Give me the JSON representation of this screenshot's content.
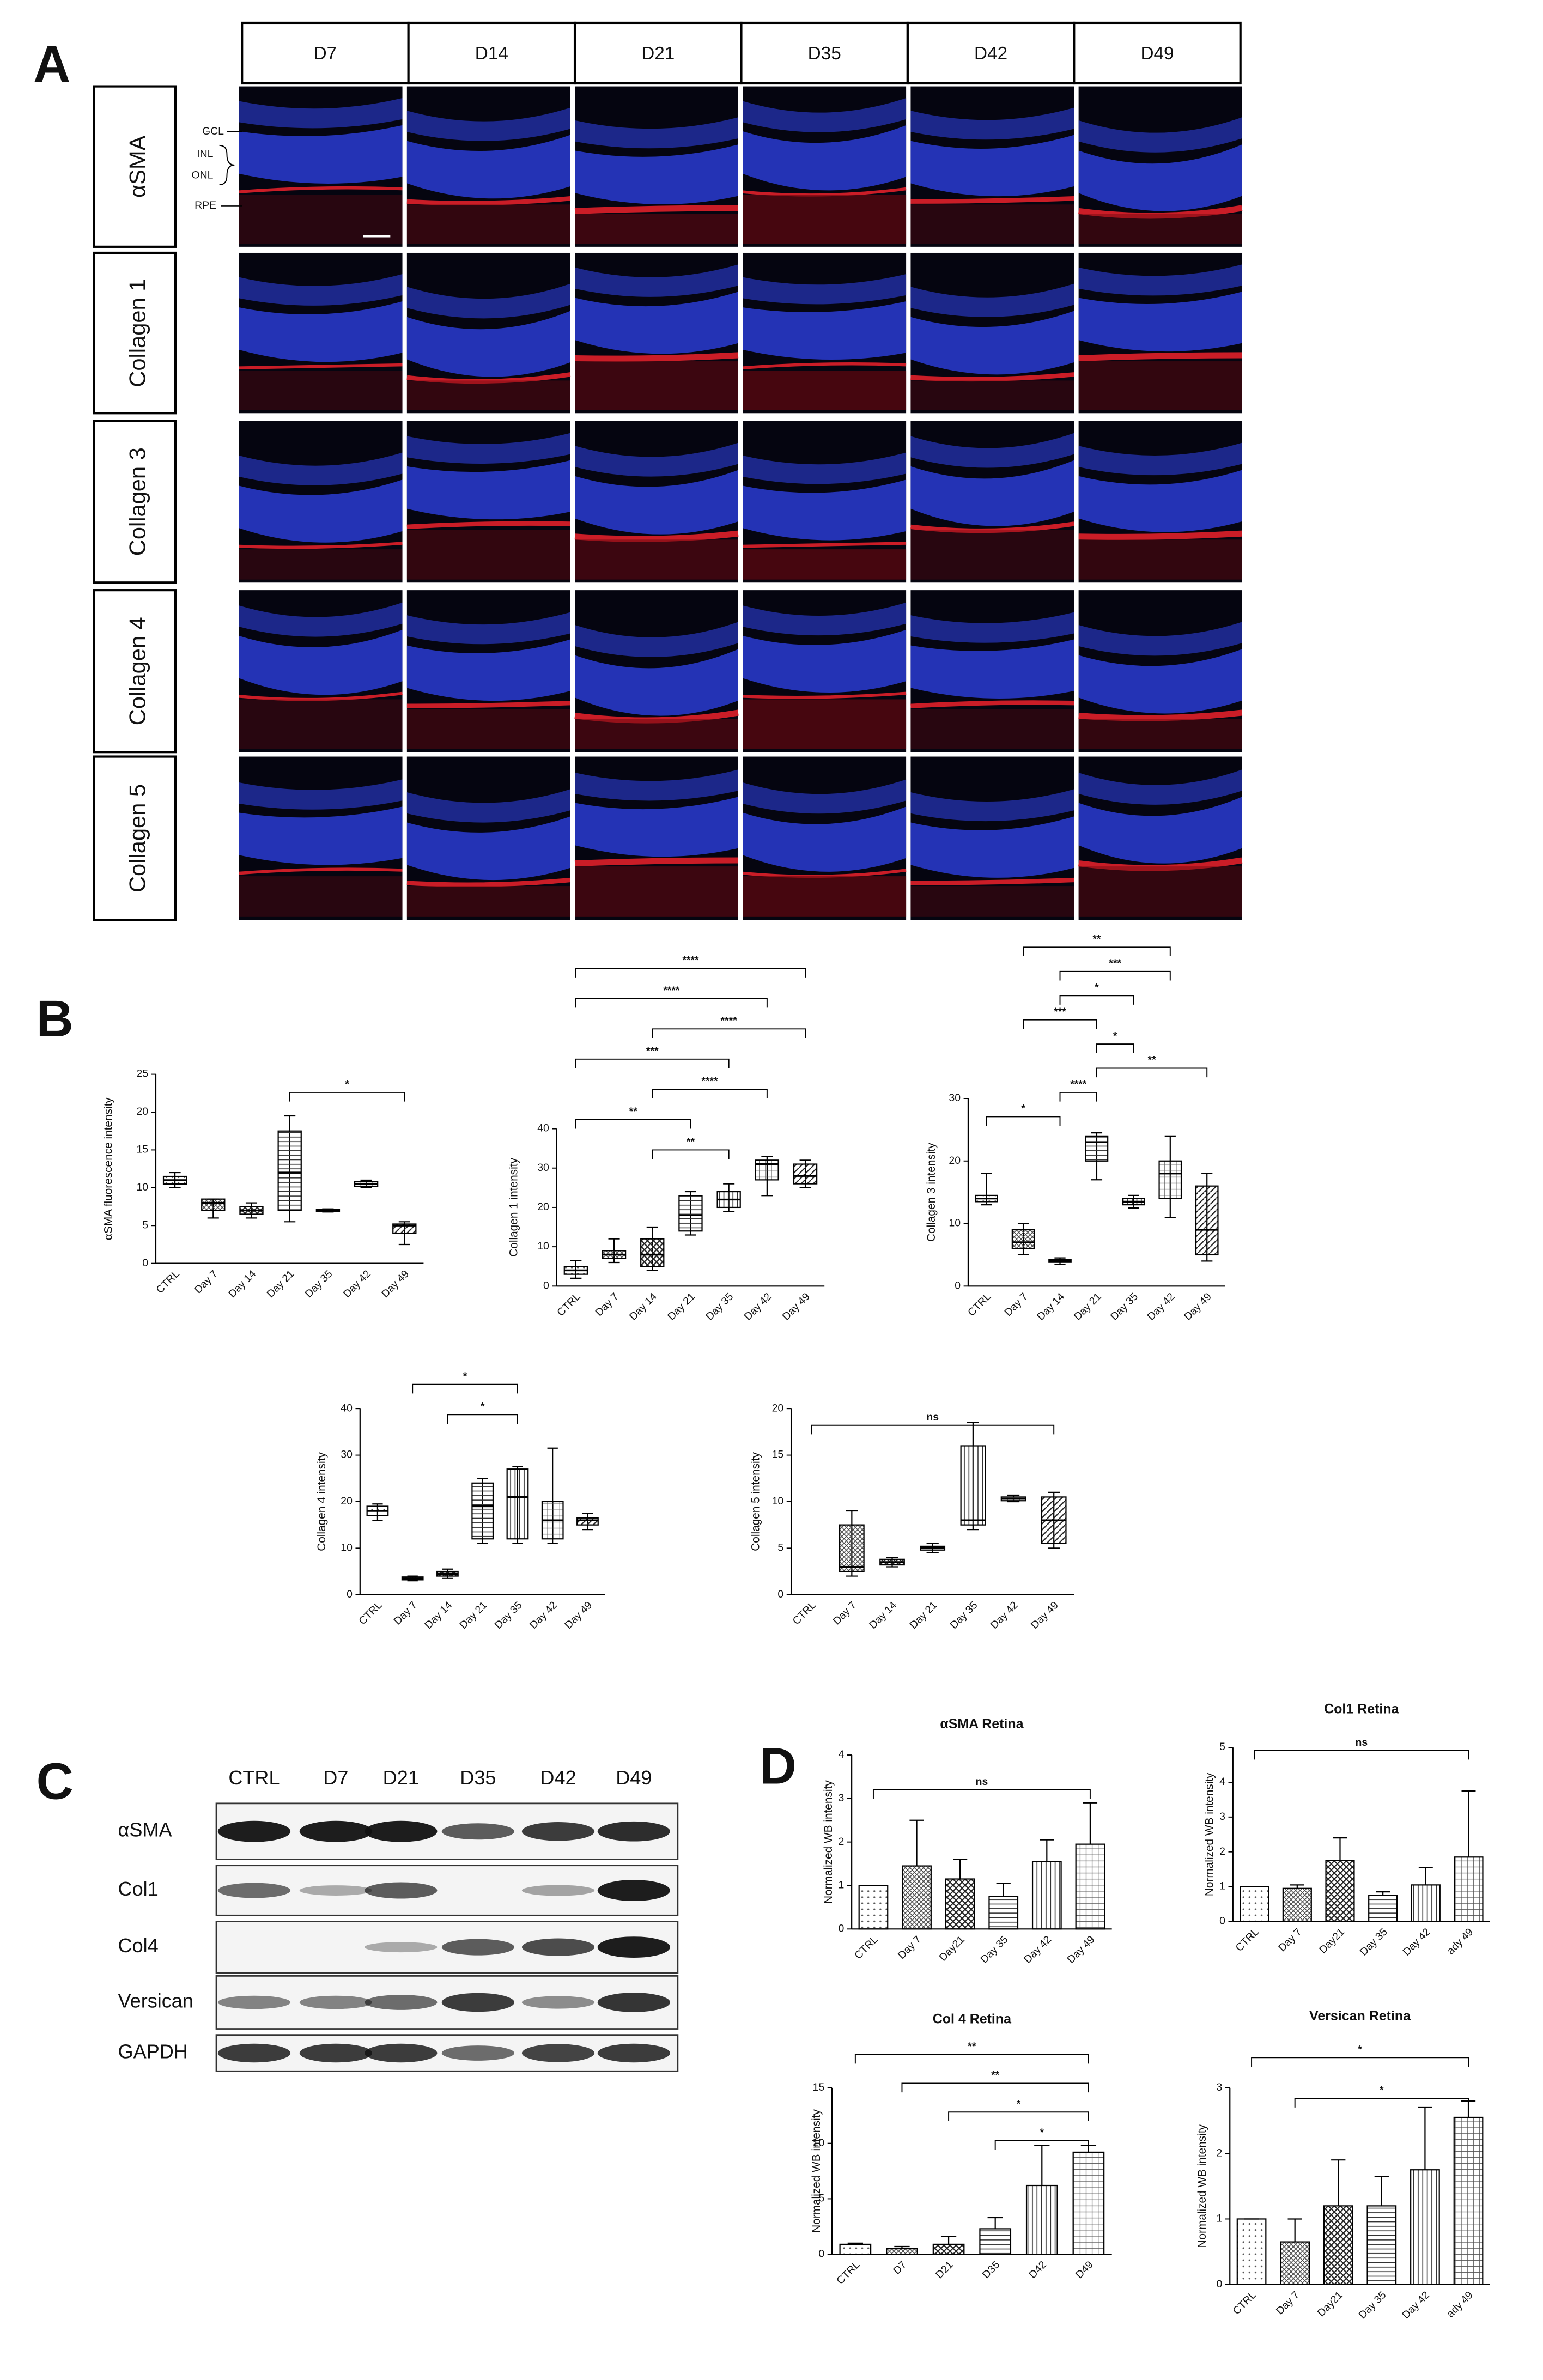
{
  "panel_labels": [
    "A",
    "B",
    "C",
    "D"
  ],
  "micrographs": {
    "columns": [
      "D7",
      "D14",
      "D21",
      "D35",
      "D42",
      "D49"
    ],
    "rows": [
      "αSMA",
      "Collagen 1",
      "Collagen 3",
      "Collagen 4",
      "Collagen 5"
    ],
    "layers": [
      "GCL",
      "INL",
      "ONL",
      "RPE"
    ]
  },
  "blot": {
    "columns": [
      "CTRL",
      "D7",
      "D21",
      "D35",
      "D42",
      "D49"
    ],
    "rows": [
      "αSMA",
      "Col1",
      "Col4",
      "Versican",
      "GAPDH"
    ]
  },
  "chart_data": [
    {
      "type": "box",
      "ylabel": "αSMA fluorescence intensity",
      "categories": [
        "CTRL",
        "Day 7",
        "Day 14",
        "Day 21",
        "Day 35",
        "Day 42",
        "Day 49"
      ],
      "boxes": [
        [
          10,
          10.5,
          11,
          11.5,
          12
        ],
        [
          6,
          7,
          8,
          8.5,
          8.5
        ],
        [
          6,
          6.5,
          7,
          7.5,
          8
        ],
        [
          5.5,
          7,
          12,
          17.5,
          19.5
        ],
        [
          6.8,
          6.9,
          7,
          7.1,
          7.2
        ],
        [
          10,
          10.2,
          10.5,
          10.8,
          11
        ],
        [
          2.5,
          4,
          5,
          5.2,
          5.5
        ]
      ],
      "ylim": [
        0,
        25
      ],
      "yticks": [
        0,
        5,
        10,
        15,
        20,
        25
      ],
      "significance": [
        {
          "between": [
            "Day 21",
            "Day 49"
          ],
          "label": "*"
        }
      ]
    },
    {
      "type": "box",
      "ylabel": "Collagen 1 intensity",
      "categories": [
        "CTRL",
        "Day 7",
        "Day 14",
        "Day 21",
        "Day 35",
        "Day 42",
        "Day 49"
      ],
      "boxes": [
        [
          2,
          3,
          4,
          5,
          6.5
        ],
        [
          6,
          7,
          8,
          9,
          12
        ],
        [
          4,
          5,
          8,
          12,
          15
        ],
        [
          13,
          14,
          18,
          23,
          24
        ],
        [
          19,
          20,
          22,
          24,
          26
        ],
        [
          23,
          27,
          31,
          32,
          33
        ],
        [
          25,
          26,
          28,
          31,
          32
        ]
      ],
      "ylim": [
        0,
        40
      ],
      "yticks": [
        0,
        10,
        20,
        30,
        40
      ],
      "significance": [
        {
          "between": [
            "Day 14",
            "Day 35"
          ],
          "label": "**"
        },
        {
          "between": [
            "CTRL",
            "Day 21"
          ],
          "label": "**"
        },
        {
          "between": [
            "Day 14",
            "Day 42"
          ],
          "label": "****"
        },
        {
          "between": [
            "CTRL",
            "Day 35"
          ],
          "label": "***"
        },
        {
          "between": [
            "Day 14",
            "Day 49"
          ],
          "label": "****"
        },
        {
          "between": [
            "CTRL",
            "Day 42"
          ],
          "label": "****"
        },
        {
          "between": [
            "CTRL",
            "Day 49"
          ],
          "label": "****"
        }
      ]
    },
    {
      "type": "box",
      "ylabel": "Collagen 3 intensity",
      "categories": [
        "CTRL",
        "Day 7",
        "Day 14",
        "Day 21",
        "Day 35",
        "Day 42",
        "Day 49"
      ],
      "boxes": [
        [
          13,
          13.5,
          14,
          14.5,
          18
        ],
        [
          5,
          6,
          7,
          9,
          10
        ],
        [
          3.5,
          3.8,
          4,
          4.2,
          4.5
        ],
        [
          17,
          20,
          23,
          24,
          24.5
        ],
        [
          12.5,
          13,
          13.5,
          14,
          14.5
        ],
        [
          11,
          14,
          18,
          20,
          24
        ],
        [
          4,
          5,
          9,
          16,
          18
        ]
      ],
      "ylim": [
        0,
        30
      ],
      "yticks": [
        0,
        10,
        20,
        30
      ],
      "significance": [
        {
          "between": [
            "CTRL",
            "Day 14"
          ],
          "label": "*"
        },
        {
          "between": [
            "Day 14",
            "Day 21"
          ],
          "label": "****"
        },
        {
          "between": [
            "Day 21",
            "Day 49"
          ],
          "label": "**"
        },
        {
          "between": [
            "Day 21",
            "Day 35"
          ],
          "label": "*"
        },
        {
          "between": [
            "Day 7",
            "Day 21"
          ],
          "label": "***"
        },
        {
          "between": [
            "Day 14",
            "Day 35"
          ],
          "label": "*"
        },
        {
          "between": [
            "Day 14",
            "Day 42"
          ],
          "label": "***"
        },
        {
          "between": [
            "Day 7",
            "Day 42"
          ],
          "label": "**"
        }
      ]
    },
    {
      "type": "box",
      "ylabel": "Collagen 4 intensity",
      "categories": [
        "CTRL",
        "Day 7",
        "Day 14",
        "Day 21",
        "Day 35",
        "Day 42",
        "Day 49"
      ],
      "boxes": [
        [
          16,
          17,
          18,
          19,
          19.5
        ],
        [
          3,
          3.2,
          3.5,
          3.8,
          4
        ],
        [
          3.5,
          4,
          4.5,
          5,
          5.5
        ],
        [
          11,
          12,
          19,
          24,
          25
        ],
        [
          11,
          12,
          21,
          27,
          27.5
        ],
        [
          11,
          12,
          16,
          20,
          31.5
        ],
        [
          14,
          15,
          16,
          16.5,
          17.5
        ]
      ],
      "ylim": [
        0,
        40
      ],
      "yticks": [
        0,
        10,
        20,
        30,
        40
      ],
      "significance": [
        {
          "between": [
            "Day 14",
            "Day 35"
          ],
          "label": "*"
        },
        {
          "between": [
            "Day 7",
            "Day 35"
          ],
          "label": "*"
        }
      ]
    },
    {
      "type": "box",
      "ylabel": "Collagen 5 intensity",
      "categories": [
        "CTRL",
        "Day 7",
        "Day 14",
        "Day 21",
        "Day 35",
        "Day 42",
        "Day 49"
      ],
      "boxes": [
        null,
        [
          2,
          2.5,
          3,
          7.5,
          9
        ],
        [
          3,
          3.2,
          3.5,
          3.8,
          4
        ],
        [
          4.5,
          4.8,
          5,
          5.2,
          5.5
        ],
        [
          7,
          7.5,
          8,
          16,
          18.5
        ],
        [
          10,
          10.1,
          10.3,
          10.5,
          10.7
        ],
        [
          5,
          5.5,
          8,
          10.5,
          11
        ]
      ],
      "ylim": [
        0,
        20
      ],
      "yticks": [
        0,
        5,
        10,
        15,
        20
      ],
      "significance": [
        {
          "between": [
            "CTRL",
            "Day 49"
          ],
          "label": "ns"
        }
      ]
    },
    {
      "type": "bar",
      "title": "αSMA Retina",
      "ylabel": "Normalized WB intensity",
      "categories": [
        "CTRL",
        "Day 7",
        "Day21",
        "Day 35",
        "Day 42",
        "Day 49"
      ],
      "values": [
        1,
        1.45,
        1.15,
        0.75,
        1.55,
        1.95
      ],
      "errors": [
        0,
        1.05,
        0.45,
        0.3,
        0.5,
        0.95
      ],
      "ylim": [
        0,
        4
      ],
      "yticks": [
        0,
        1,
        2,
        3,
        4
      ],
      "significance": [
        {
          "between": [
            "CTRL",
            "Day 49"
          ],
          "label": "ns"
        }
      ]
    },
    {
      "type": "bar",
      "title": "Col1 Retina",
      "ylabel": "Normalized WB intensity",
      "categories": [
        "CTRL",
        "Day 7",
        "Day21",
        "Day 35",
        "Day 42",
        "ady 49"
      ],
      "values": [
        1,
        0.95,
        1.75,
        0.75,
        1.05,
        1.85
      ],
      "errors": [
        0,
        0.1,
        0.65,
        0.1,
        0.5,
        1.9
      ],
      "ylim": [
        0,
        5
      ],
      "yticks": [
        0,
        1,
        2,
        3,
        4,
        5
      ],
      "significance": [
        {
          "between": [
            "CTRL",
            "ady 49"
          ],
          "label": "ns"
        }
      ]
    },
    {
      "type": "bar",
      "title": "Col 4 Retina",
      "ylabel": "Normalized WB intensity",
      "categories": [
        "CTRL",
        "D7",
        "D21",
        "D35",
        "D42",
        "D49"
      ],
      "values": [
        0.9,
        0.5,
        0.9,
        2.3,
        6.2,
        9.2
      ],
      "errors": [
        0.1,
        0.2,
        0.7,
        1,
        3.6,
        0.6
      ],
      "ylim": [
        0,
        15
      ],
      "yticks": [
        0,
        5,
        10,
        15
      ],
      "significance": [
        {
          "between": [
            "D35",
            "D49"
          ],
          "label": "*"
        },
        {
          "between": [
            "D21",
            "D49"
          ],
          "label": "*"
        },
        {
          "between": [
            "D7",
            "D49"
          ],
          "label": "**"
        },
        {
          "between": [
            "CTRL",
            "D49"
          ],
          "label": "**"
        }
      ]
    },
    {
      "type": "bar",
      "title": "Versican Retina",
      "ylabel": "Normalized WB intensity",
      "categories": [
        "CTRL",
        "Day 7",
        "Day21",
        "Day 35",
        "Day 42",
        "ady 49"
      ],
      "values": [
        1,
        0.65,
        1.2,
        1.2,
        1.75,
        2.55
      ],
      "errors": [
        0,
        0.35,
        0.7,
        0.45,
        0.95,
        0.25
      ],
      "ylim": [
        0,
        3
      ],
      "yticks": [
        0,
        1,
        2,
        3
      ],
      "significance": [
        {
          "between": [
            "Day 7",
            "ady 49"
          ],
          "label": "*"
        },
        {
          "between": [
            "CTRL",
            "ady 49"
          ],
          "label": "*"
        }
      ]
    }
  ]
}
